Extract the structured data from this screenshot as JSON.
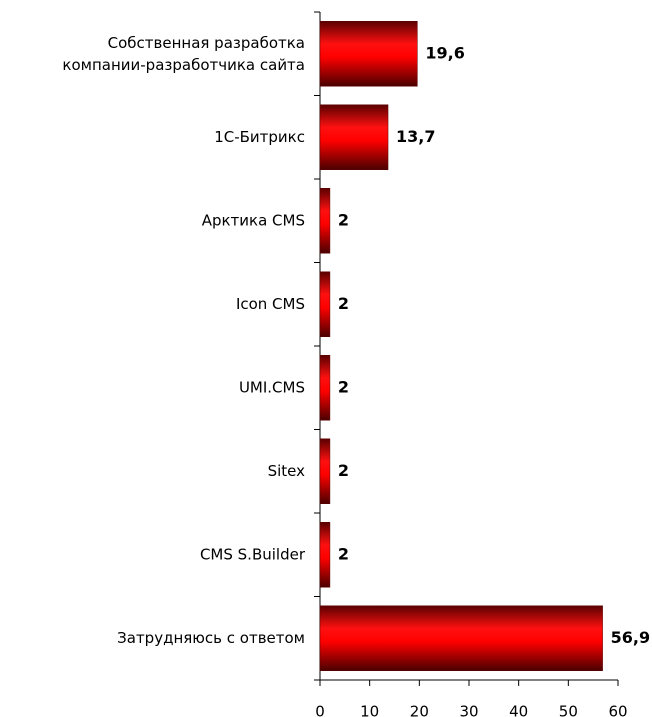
{
  "chart_data": {
    "type": "barh",
    "categories": [
      "Собственная разработка\nкомпании-разработчика сайта",
      "1С-Битрикс",
      "Арктика CMS",
      "Icon CMS",
      "UMI.CMS",
      "Sitex",
      "CMS S.Builder",
      "Затрудняюсь с ответом"
    ],
    "values": [
      19.6,
      13.7,
      2,
      2,
      2,
      2,
      2,
      56.9
    ],
    "value_labels": [
      "19,6",
      "13,7",
      "2",
      "2",
      "2",
      "2",
      "2",
      "56,9"
    ],
    "color": "#ff0000",
    "xlim": [
      0,
      60
    ],
    "xticks": [
      0,
      10,
      20,
      30,
      40,
      50,
      60
    ],
    "grid": false
  }
}
